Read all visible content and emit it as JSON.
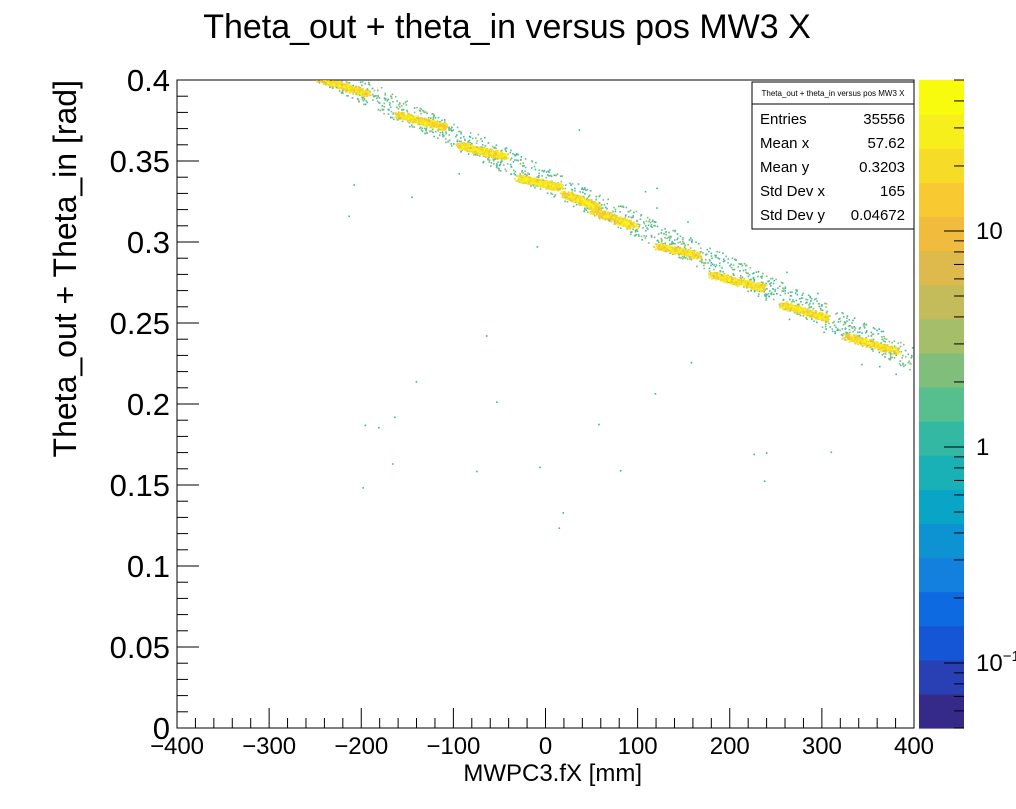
{
  "chart_data": {
    "type": "heatmap",
    "title": "Theta_out + theta_in versus pos MW3 X",
    "xlabel": "MWPC3.fX [mm]",
    "ylabel": "Theta_out + Theta_in [rad]",
    "xlim": [
      -400,
      400
    ],
    "ylim": [
      0,
      0.4
    ],
    "x_ticks": [
      "−400",
      "−300",
      "−200",
      "−100",
      "0",
      "100",
      "200",
      "300",
      "400"
    ],
    "y_ticks": [
      "0",
      "0.05",
      "0.1",
      "0.15",
      "0.2",
      "0.25",
      "0.3",
      "0.35",
      "0.4"
    ],
    "z_scale": "log",
    "z_ticks": [
      {
        "base": "10",
        "exp": "",
        "value": 10
      },
      {
        "base": "1",
        "exp": "",
        "value": 1
      },
      {
        "base": "10",
        "exp": "−1",
        "value": 0.1
      }
    ],
    "z_range": [
      0.05,
      50
    ],
    "colormap": [
      "#352a87",
      "#2840b4",
      "#1456d6",
      "#0e6ae0",
      "#1280dc",
      "#0d93d2",
      "#09a5c6",
      "#1ab1b6",
      "#33b8a4",
      "#57bf8e",
      "#7fbf7b",
      "#a4be69",
      "#c4bb5a",
      "#deb94b",
      "#f1bb3d",
      "#f9c931",
      "#f6dc26",
      "#f7ef1c",
      "#f9fb0e"
    ],
    "ridges": [
      {
        "x1": -250,
        "y1": 0.402,
        "x2": -195,
        "y2": 0.392,
        "count": 30
      },
      {
        "x1": -160,
        "y1": 0.379,
        "x2": -110,
        "y2": 0.371,
        "count": 30
      },
      {
        "x1": -95,
        "y1": 0.36,
        "x2": -45,
        "y2": 0.353,
        "count": 30
      },
      {
        "x1": -30,
        "y1": 0.34,
        "x2": 15,
        "y2": 0.334,
        "count": 30
      },
      {
        "x1": 20,
        "y1": 0.33,
        "x2": 55,
        "y2": 0.322,
        "count": 30
      },
      {
        "x1": 50,
        "y1": 0.32,
        "x2": 95,
        "y2": 0.31,
        "count": 30
      },
      {
        "x1": 120,
        "y1": 0.298,
        "x2": 165,
        "y2": 0.292,
        "count": 20
      },
      {
        "x1": 180,
        "y1": 0.28,
        "x2": 235,
        "y2": 0.272,
        "count": 25
      },
      {
        "x1": 255,
        "y1": 0.262,
        "x2": 305,
        "y2": 0.253,
        "count": 25
      },
      {
        "x1": 325,
        "y1": 0.242,
        "x2": 380,
        "y2": 0.233,
        "count": 20
      }
    ],
    "stats": {
      "title": "Theta_out + theta_in versus pos MW3 X",
      "rows": [
        {
          "label": "Entries",
          "value": "35556"
        },
        {
          "label": "Mean x",
          "value": "57.62"
        },
        {
          "label": "Mean y",
          "value": "0.3203"
        },
        {
          "label": "Std Dev x",
          "value": "165"
        },
        {
          "label": "Std Dev y",
          "value": "0.04672"
        }
      ]
    }
  }
}
